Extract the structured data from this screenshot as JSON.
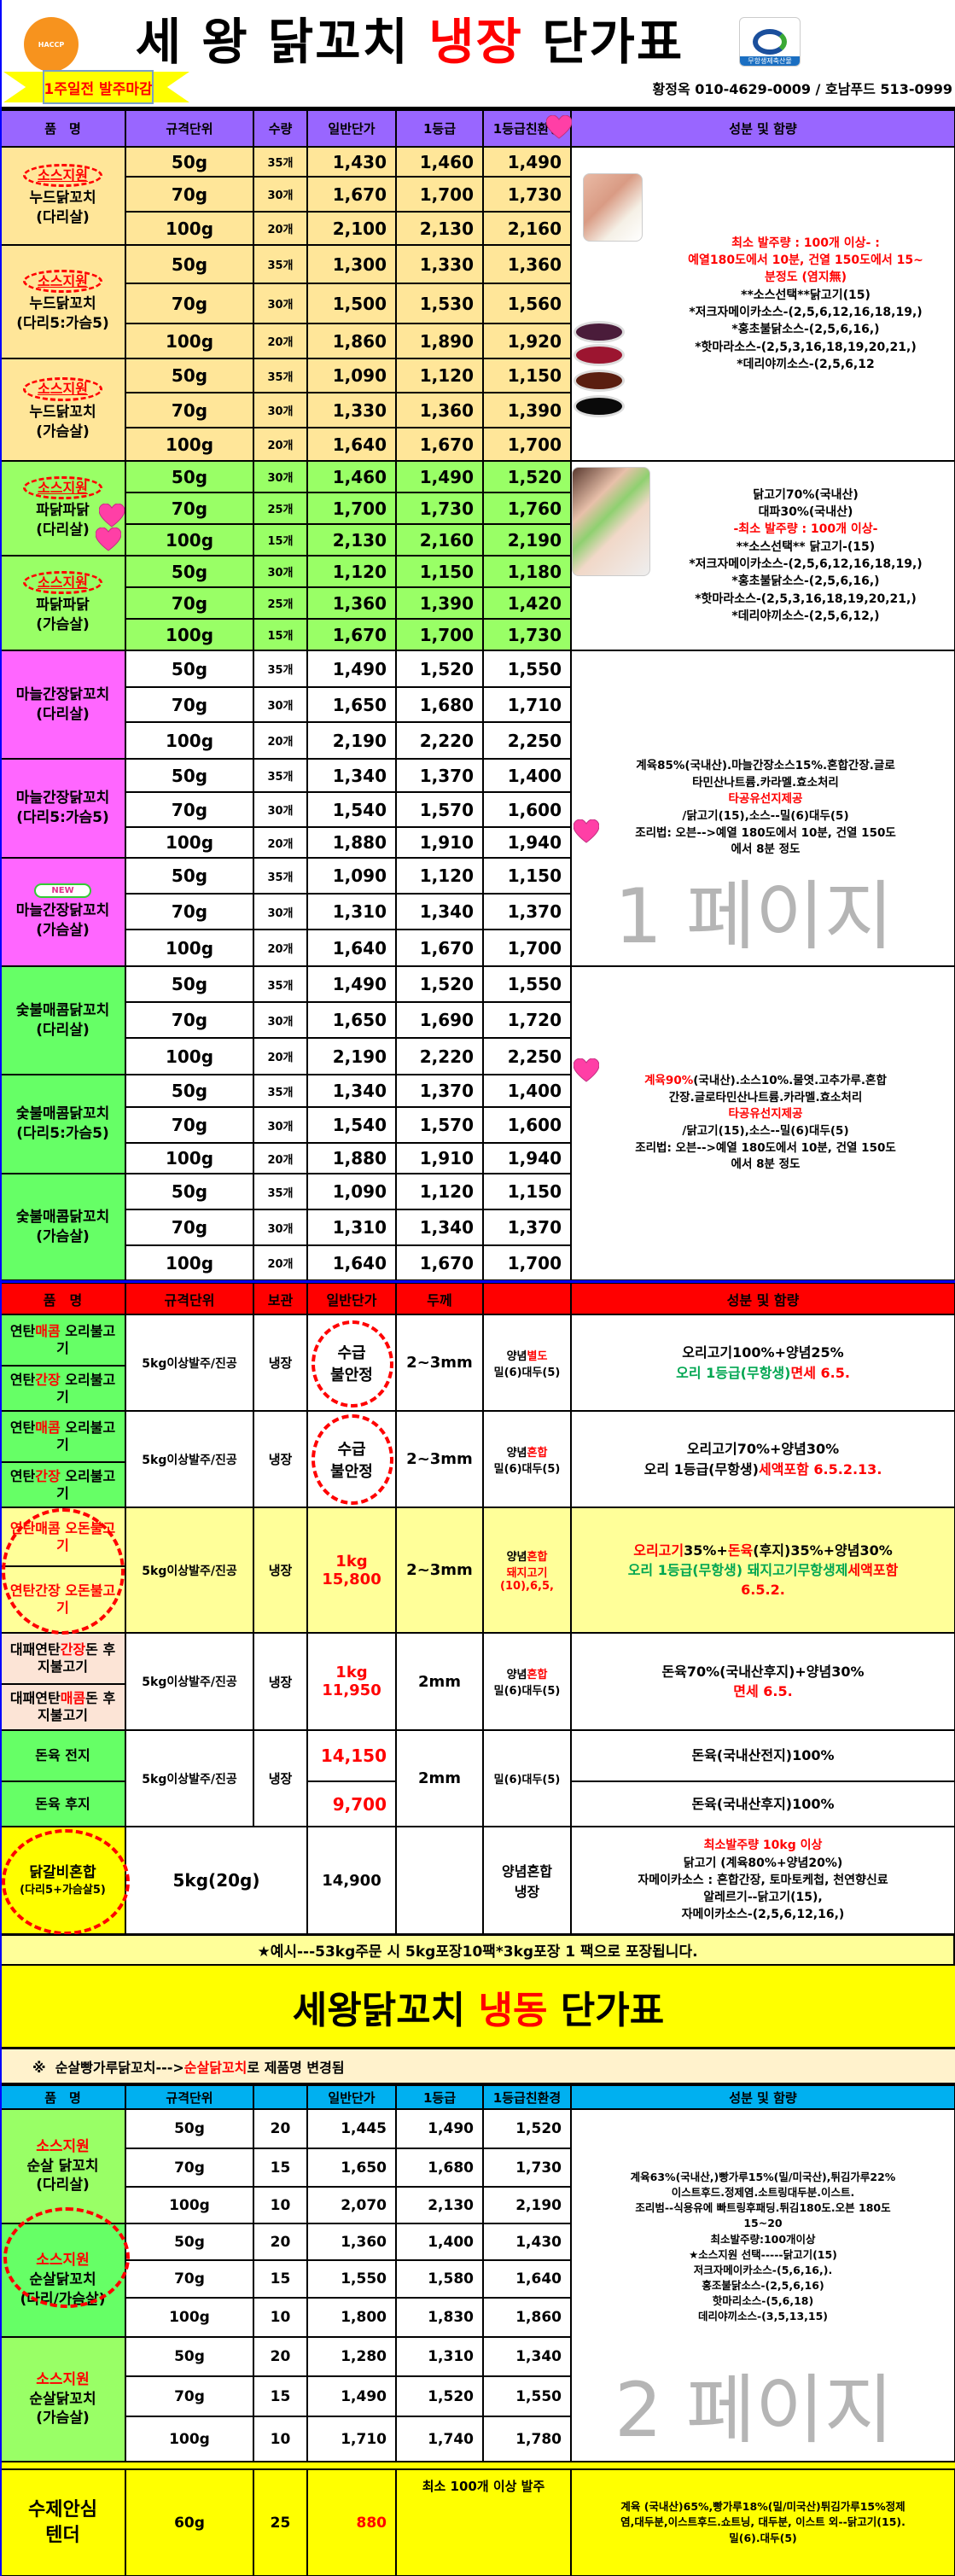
{
  "colors": {
    "red": "#ff0000",
    "green": "#00a651",
    "purple_header": "#9966ff",
    "red_header": "#ff0000",
    "blue_header": "#00b0f0",
    "orange_rows": "#ffe699",
    "green_rows": "#99ff66",
    "magenta_names": "#ff66ff",
    "bright_green": "#66ff66",
    "yellow": "#ffff00",
    "light_yellow": "#ffff99",
    "peach": "#fce4d6"
  },
  "header": {
    "title_pre": "세 왕 닭꼬치 ",
    "title_accent": "냉장",
    "title_post": " 단가표",
    "banner": "1주일전 발주마감",
    "contact": "황정옥 010-4629-0009 / 호남푸드 513-0999",
    "haccp_logo": "HACCP 위해요소 중점관리 우수축산물 농림부",
    "organic_logo": "무항생제축산물"
  },
  "chilled": {
    "columns": [
      "품　명",
      "규격단위",
      "수량",
      "일반단가",
      "1등급",
      "1등급친환경",
      "성분 및 함량"
    ],
    "badge": "소스지원",
    "new_badge": "NEW",
    "groups": [
      {
        "badge": true,
        "name": [
          "누드닭꼬치",
          "(다리살)"
        ],
        "rows": [
          [
            "50g",
            "35개",
            "1,430",
            "1,460",
            "1,490"
          ],
          [
            "70g",
            "30개",
            "1,670",
            "1,700",
            "1,730"
          ],
          [
            "100g",
            "20개",
            "2,100",
            "2,130",
            "2,160"
          ]
        ]
      },
      {
        "badge": true,
        "name": [
          "누드닭꼬치",
          "(다리5:가슴5)"
        ],
        "rows": [
          [
            "50g",
            "35개",
            "1,300",
            "1,330",
            "1,360"
          ],
          [
            "70g",
            "30개",
            "1,500",
            "1,530",
            "1,560"
          ],
          [
            "100g",
            "20개",
            "1,860",
            "1,890",
            "1,920"
          ]
        ]
      },
      {
        "badge": true,
        "name": [
          "누드닭꼬치",
          "(가슴살)"
        ],
        "rows": [
          [
            "50g",
            "35개",
            "1,090",
            "1,120",
            "1,150"
          ],
          [
            "70g",
            "30개",
            "1,330",
            "1,360",
            "1,390"
          ],
          [
            "100g",
            "20개",
            "1,640",
            "1,670",
            "1,700"
          ]
        ]
      },
      {
        "badge": true,
        "name": [
          "파닭파닭",
          "(다리살)"
        ],
        "rows": [
          [
            "50g",
            "30개",
            "1,460",
            "1,490",
            "1,520"
          ],
          [
            "70g",
            "25개",
            "1,700",
            "1,730",
            "1,760"
          ],
          [
            "100g",
            "15개",
            "2,130",
            "2,160",
            "2,190"
          ]
        ]
      },
      {
        "badge": true,
        "name": [
          "파닭파닭",
          "(가슴살)"
        ],
        "rows": [
          [
            "50g",
            "30개",
            "1,120",
            "1,150",
            "1,180"
          ],
          [
            "70g",
            "25개",
            "1,360",
            "1,390",
            "1,420"
          ],
          [
            "100g",
            "15개",
            "1,670",
            "1,700",
            "1,730"
          ]
        ]
      },
      {
        "badge": false,
        "name": [
          "마늘간장닭꼬치",
          "(다리살)"
        ],
        "rows": [
          [
            "50g",
            "35개",
            "1,490",
            "1,520",
            "1,550"
          ],
          [
            "70g",
            "30개",
            "1,650",
            "1,680",
            "1,710"
          ],
          [
            "100g",
            "20개",
            "2,190",
            "2,220",
            "2,250"
          ]
        ]
      },
      {
        "badge": false,
        "name": [
          "마늘간장닭꼬치",
          "(다리5:가슴5)"
        ],
        "rows": [
          [
            "50g",
            "35개",
            "1,340",
            "1,370",
            "1,400"
          ],
          [
            "70g",
            "30개",
            "1,540",
            "1,570",
            "1,600"
          ],
          [
            "100g",
            "20개",
            "1,880",
            "1,910",
            "1,940"
          ]
        ]
      },
      {
        "badge": false,
        "new": true,
        "name": [
          "마늘간장닭꼬치",
          "(가슴살)"
        ],
        "rows": [
          [
            "50g",
            "35개",
            "1,090",
            "1,120",
            "1,150"
          ],
          [
            "70g",
            "30개",
            "1,310",
            "1,340",
            "1,370"
          ],
          [
            "100g",
            "20개",
            "1,640",
            "1,670",
            "1,700"
          ]
        ]
      },
      {
        "badge": false,
        "name": [
          "숯불매콤닭꼬치",
          "(다리살)"
        ],
        "rows": [
          [
            "50g",
            "35개",
            "1,490",
            "1,520",
            "1,550"
          ],
          [
            "70g",
            "30개",
            "1,650",
            "1,690",
            "1,720"
          ],
          [
            "100g",
            "20개",
            "2,190",
            "2,220",
            "2,250"
          ]
        ]
      },
      {
        "badge": false,
        "name": [
          "숯불매콤닭꼬치",
          "(다리5:가슴5)"
        ],
        "rows": [
          [
            "50g",
            "35개",
            "1,340",
            "1,370",
            "1,400"
          ],
          [
            "70g",
            "30개",
            "1,540",
            "1,570",
            "1,600"
          ],
          [
            "100g",
            "20개",
            "1,880",
            "1,910",
            "1,940"
          ]
        ]
      },
      {
        "badge": false,
        "name": [
          "숯불매콤닭꼬치",
          "(가슴살)"
        ],
        "rows": [
          [
            "50g",
            "35개",
            "1,090",
            "1,120",
            "1,150"
          ],
          [
            "70g",
            "30개",
            "1,310",
            "1,340",
            "1,370"
          ],
          [
            "100g",
            "20개",
            "1,640",
            "1,670",
            "1,700"
          ]
        ]
      }
    ],
    "info": [
      [
        [
          {
            "t": "최소 발주량 : 100개 이상- :",
            "c": "#ff0000"
          }
        ],
        [
          {
            "t": "예열180도에서 10분, 건열 150도에서 15~",
            "c": "#ff0000"
          }
        ],
        [
          {
            "t": "분정도  (염지無)",
            "c": "#ff0000"
          }
        ],
        [
          {
            "t": " "
          }
        ],
        [
          {
            "t": "**소스선택**닭고기(15)"
          }
        ],
        [
          {
            "t": "*저크자메이카소스-(2,5,6,12,16,18,19,)"
          }
        ],
        [
          {
            "t": "*홍초불닭소스-(2,5,6,16,)"
          }
        ],
        [
          {
            "t": "*핫마라소스-(2,5,3,16,18,19,20,21,)"
          }
        ],
        [
          {
            "t": "*데리야끼소스-(2,5,6,12"
          }
        ]
      ],
      [
        [
          {
            "t": "닭고기70%(국내산)"
          }
        ],
        [
          {
            "t": "대파30%(국내산)"
          }
        ],
        [
          {
            "t": "-최소 발주량 : 100개 이상-",
            "c": "#ff0000"
          }
        ],
        [
          {
            "t": "**소스선택** 닭고기-(15)"
          }
        ],
        [
          {
            "t": "*저크자메이카소스-(2,5,6,12,16,18,19,)"
          }
        ],
        [
          {
            "t": "*홍초불닭소스-(2,5,6,16,)"
          }
        ],
        [
          {
            "t": "*핫마라소스-(2,5,3,16,18,19,20,21,)"
          }
        ],
        [
          {
            "t": "*데리야끼소스-(2,5,6,12,)"
          }
        ]
      ],
      [
        [
          {
            "t": "계육85%(국내산).마늘간장소스15%.혼합간장.글로"
          }
        ],
        [
          {
            "t": "타민산나트륨.카라멜.효소처리"
          }
        ],
        [
          {
            "t": "타공유선지제공",
            "c": "#ff0000"
          }
        ],
        [
          {
            "t": "/닭고기(15),소스--밀(6)대두(5)"
          }
        ],
        [
          {
            "t": "조리법: 오븐-->예열 180도에서 10분, 건열 150도"
          }
        ],
        [
          {
            "t": "에서 8분 정도"
          }
        ]
      ],
      [
        [
          {
            "t": "계육90%",
            "c": "#ff0000"
          },
          {
            "t": "(국내산).소스10%.물엿.고추가루.혼합"
          }
        ],
        [
          {
            "t": "간장.글로타민산나트륨.카라멜.효소처리"
          }
        ],
        [
          {
            "t": "타공유선지제공",
            "c": "#ff0000"
          }
        ],
        [
          {
            "t": "/닭고기(15),소스--밀(6)대두(5)"
          }
        ],
        [
          {
            "t": "조리법: 오븐-->예열 180도에서 10분, 건열 150도"
          }
        ],
        [
          {
            "t": "에서 8분 정도"
          }
        ]
      ]
    ]
  },
  "marinated": {
    "columns": [
      "품　명",
      "규격단위",
      "보관",
      "일반단가",
      "두께",
      "",
      "성분 및 함량"
    ],
    "rows": [
      {
        "names": [
          [
            {
              "t": "연탄"
            },
            {
              "t": "매콤",
              "c": "#ff0000"
            },
            {
              "t": " 오리불고기"
            }
          ],
          [
            {
              "t": "연탄"
            },
            {
              "t": "간장",
              "c": "#ff0000"
            },
            {
              "t": " 오리불고기"
            }
          ]
        ],
        "spec": "5kg이상발주/진공",
        "storage": "냉장",
        "price": [
          [
            {
              "t": "수급"
            }
          ],
          [
            {
              "t": "불안정"
            }
          ]
        ],
        "thick": "2~3mm",
        "sauce": [
          [
            {
              "t": "양념"
            },
            {
              "t": "별도",
              "c": "#ff0000"
            }
          ],
          [
            {
              "t": "밀(6)대두(5)"
            }
          ]
        ],
        "info": [
          [
            {
              "t": "오리고기100%+양념25%"
            }
          ],
          [
            {
              "t": "오리 1등급(무항생)",
              "c": "#00a651"
            },
            {
              "t": "면세 6.5.",
              "c": "#ff0000"
            }
          ]
        ]
      },
      {
        "names": [
          [
            {
              "t": "연탄"
            },
            {
              "t": "매콤",
              "c": "#ff0000"
            },
            {
              "t": " 오리불고기"
            }
          ],
          [
            {
              "t": "연탄"
            },
            {
              "t": "간장",
              "c": "#ff0000"
            },
            {
              "t": " 오리불고기"
            }
          ]
        ],
        "spec": "5kg이상발주/진공",
        "storage": "냉장",
        "price": [
          [
            {
              "t": "수급"
            }
          ],
          [
            {
              "t": "불안정"
            }
          ]
        ],
        "thick": "2~3mm",
        "sauce": [
          [
            {
              "t": "양념"
            },
            {
              "t": "혼합",
              "c": "#ff0000"
            }
          ],
          [
            {
              "t": "밀(6)대두(5)"
            }
          ]
        ],
        "info": [
          [
            {
              "t": "오리고기70%+양념30%"
            }
          ],
          [
            {
              "t": "오리 1등급(무항생)"
            },
            {
              "t": "세액포함 6.5.2.13.",
              "c": "#ff0000"
            }
          ]
        ]
      },
      {
        "names": [
          [
            {
              "t": "연탄매콤 오돈불고기",
              "c": "#ff0000"
            }
          ],
          [
            {
              "t": "연탄간장 오돈불고기",
              "c": "#ff0000"
            }
          ]
        ],
        "spec": "5kg이상발주/진공",
        "storage": "냉장",
        "price": [
          [
            {
              "t": "1kg",
              "c": "#ff0000"
            }
          ],
          [
            {
              "t": "15,800",
              "c": "#ff0000"
            }
          ]
        ],
        "thick": "2~3mm",
        "sauce": [
          [
            {
              "t": "양념"
            },
            {
              "t": "혼합",
              "c": "#ff0000"
            }
          ],
          [
            {
              "t": "돼지고기",
              "c": "#ff0000"
            }
          ],
          [
            {
              "t": "(10),6,5,",
              "c": "#ff0000"
            }
          ]
        ],
        "info": [
          [
            {
              "t": "오리고기",
              "c": "#ff0000"
            },
            {
              "t": "35%+"
            },
            {
              "t": "돈육",
              "c": "#ff0000"
            },
            {
              "t": "(후지)35%+양념30%"
            }
          ],
          [
            {
              "t": "오리 1등급(무항생) 돼지고기무항생제",
              "c": "#00a651"
            },
            {
              "t": "세액포함",
              "c": "#ff0000"
            }
          ],
          [
            {
              "t": "6.5.2.",
              "c": "#ff0000"
            }
          ]
        ]
      },
      {
        "names": [
          [
            {
              "t": "대패연탄"
            },
            {
              "t": "간장",
              "c": "#ff0000"
            },
            {
              "t": "돈 후지불고기"
            }
          ],
          [
            {
              "t": "대패연탄"
            },
            {
              "t": "매콤",
              "c": "#ff0000"
            },
            {
              "t": "돈 후지불고기"
            }
          ]
        ],
        "spec": "5kg이상발주/진공",
        "storage": "냉장",
        "price": [
          [
            {
              "t": "1kg",
              "c": "#ff0000"
            }
          ],
          [
            {
              "t": "11,950",
              "c": "#ff0000"
            }
          ]
        ],
        "thick": "2mm",
        "sauce": [
          [
            {
              "t": "양념"
            },
            {
              "t": "혼합",
              "c": "#ff0000"
            }
          ],
          [
            {
              "t": "밀(6)대두(5)"
            }
          ]
        ],
        "info": [
          [
            {
              "t": "돈육70%(국내산후지)+양념30%"
            }
          ],
          [
            {
              "t": "면세 6.5.",
              "c": "#ff0000"
            }
          ]
        ]
      },
      {
        "names": [
          [
            {
              "t": "돈육 전지"
            }
          ],
          [
            {
              "t": "돈육 후지"
            }
          ]
        ],
        "spec": "5kg이상발주/진공",
        "storage": "냉장",
        "prices": [
          "14,150",
          "9,700"
        ],
        "thick": "2mm",
        "sauce": [
          [
            {
              "t": "밀(6)대두(5)"
            }
          ]
        ],
        "infos": [
          "돈육(국내산전지)100%",
          "돈육(국내산후지)100%"
        ]
      },
      {
        "names": [
          [
            {
              "t": "닭갈비혼합"
            }
          ],
          [
            {
              "t": "(다리5+가슴살5)"
            }
          ]
        ],
        "spec": "5kg(20g)",
        "price": [
          [
            {
              "t": "14,900"
            }
          ]
        ],
        "thick": "",
        "sauce": [
          [
            {
              "t": "양념혼합"
            }
          ],
          [
            {
              "t": "냉장"
            }
          ]
        ],
        "info": [
          [
            {
              "t": "최소발주량 10kg 이상",
              "c": "#ff0000"
            }
          ],
          [
            {
              "t": "닭고기 (계육80%+양념20%)"
            }
          ],
          [
            {
              "t": "자메이카소스 : 혼합간장, 토마토케첩, 천연향신료"
            }
          ],
          [
            {
              "t": "알레르기--닭고기(15),"
            }
          ],
          [
            {
              "t": "자메이카소스-(2,5,6,12,16,)"
            }
          ]
        ]
      }
    ],
    "note": "★예시---53kg주문 시 5kg포장10팩*3kg포장 1 팩으로 포장됩니다."
  },
  "frozen": {
    "title_pre": "세왕닭꼬치 ",
    "title_accent": "냉동",
    "title_post": " 단가표",
    "notice_pre": "※  순살빵가루닭꼬치--->",
    "notice_accent": "순살닭꼬치",
    "notice_post": "로 제품명 변경됨",
    "columns": [
      "품　명",
      "규격단위",
      "",
      "일반단가",
      "1등급",
      "1등급친환경",
      "성분 및 함량"
    ],
    "groups": [
      {
        "badge": "소스지원",
        "name": [
          "순살 닭꼬치",
          "(다리살)"
        ],
        "rows": [
          [
            "50g",
            "20",
            "1,445",
            "1,490",
            "1,520"
          ],
          [
            "70g",
            "15",
            "1,650",
            "1,680",
            "1,730"
          ],
          [
            "100g",
            "10",
            "2,070",
            "2,130",
            "2,190"
          ]
        ]
      },
      {
        "badge": "소스지원",
        "name": [
          "순살닭꼬치",
          "(다리/가슴살)"
        ],
        "rows": [
          [
            "50g",
            "20",
            "1,360",
            "1,400",
            "1,430"
          ],
          [
            "70g",
            "15",
            "1,550",
            "1,580",
            "1,640"
          ],
          [
            "100g",
            "10",
            "1,800",
            "1,830",
            "1,860"
          ]
        ]
      },
      {
        "badge": "소스지원",
        "name": [
          "순살닭꼬치",
          "(가슴살)"
        ],
        "rows": [
          [
            "50g",
            "20",
            "1,280",
            "1,310",
            "1,340"
          ],
          [
            "70g",
            "15",
            "1,490",
            "1,520",
            "1,550"
          ],
          [
            "100g",
            "10",
            "1,710",
            "1,740",
            "1,780"
          ]
        ]
      }
    ],
    "info": [
      [
        {
          "t": "계육63%(국내산,)빵가루15%(밀/미국산),튀김가루22%"
        }
      ],
      [
        {
          "t": "이스트후드.정제염.소트링대두분.이스트."
        }
      ],
      [
        {
          "t": "조리범--식용유에 빠트링후패딩.튀김180도.오븐 180도"
        }
      ],
      [
        {
          "t": "15~20"
        }
      ],
      [
        {
          "t": "최소발주량:100개이상"
        }
      ],
      [
        {
          "t": "★소스지원 선택-----닭고기(15)"
        }
      ],
      [
        {
          "t": "저크자메이카소스-(5,6,16,)."
        }
      ],
      [
        {
          "t": "홍조불닭소스-(2,5,6,16)"
        }
      ],
      [
        {
          "t": "핫마리소스-(5,6,18)"
        }
      ],
      [
        {
          "t": "데리야끼소스-(3,5,13,15)"
        }
      ]
    ],
    "tender": {
      "name": [
        "수제안심",
        "텐더"
      ],
      "spec": "60g",
      "qty": "25",
      "price": "880",
      "min_order": "최소 100개 이상 발주",
      "info": [
        [
          {
            "t": "계육 (국내산)65%,빵가루18%(밀/미국산)튀김가루15%정제"
          }
        ],
        [
          {
            "t": "염,대두분,이스트후드.쇼트닝, 대두분, 이스트 외--닭고기(15)."
          }
        ],
        [
          {
            "t": "밀(6).대두(5)"
          }
        ]
      ]
    }
  },
  "watermarks": [
    "1 페이지",
    "2 페이지"
  ]
}
